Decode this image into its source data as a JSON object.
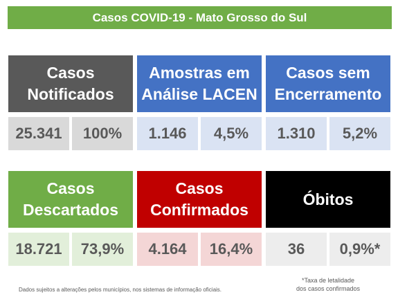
{
  "header": {
    "title": "Casos COVID-19 - Mato Grosso do Sul"
  },
  "top_row": [
    {
      "label_line1": "Casos",
      "label_line2": "Notificados",
      "value": "25.341",
      "percent": "100%",
      "color": "#595959",
      "value_bg": "#d9d9d9"
    },
    {
      "label_line1": "Amostras em",
      "label_line2": "Análise LACEN",
      "value": "1.146",
      "percent": "4,5%",
      "color": "#4472c4",
      "value_bg": "#dae3f3"
    },
    {
      "label_line1": "Casos sem",
      "label_line2": "Encerramento",
      "value": "1.310",
      "percent": "5,2%",
      "color": "#4472c4",
      "value_bg": "#dae3f3"
    }
  ],
  "bottom_row": [
    {
      "label_line1": "Casos",
      "label_line2": "Descartados",
      "value": "18.721",
      "percent": "73,9%",
      "color": "#70ad47",
      "value_bg": "#e2efda"
    },
    {
      "label_line1": "Casos",
      "label_line2": "Confirmados",
      "value": "4.164",
      "percent": "16,4%",
      "color": "#c00000",
      "value_bg": "#f4d6d6"
    },
    {
      "label_line1": "Óbitos",
      "label_line2": "",
      "value": "36",
      "percent": "0,9%*",
      "color": "#000000",
      "value_bg": "#ededed"
    }
  ],
  "footnote": "Dados sujeitos a alterações pelos municípios, nos sistemas de informação oficiais.",
  "lethality_note": {
    "line1": "*Taxa de letalidade",
    "line2": "dos casos confirmados"
  }
}
